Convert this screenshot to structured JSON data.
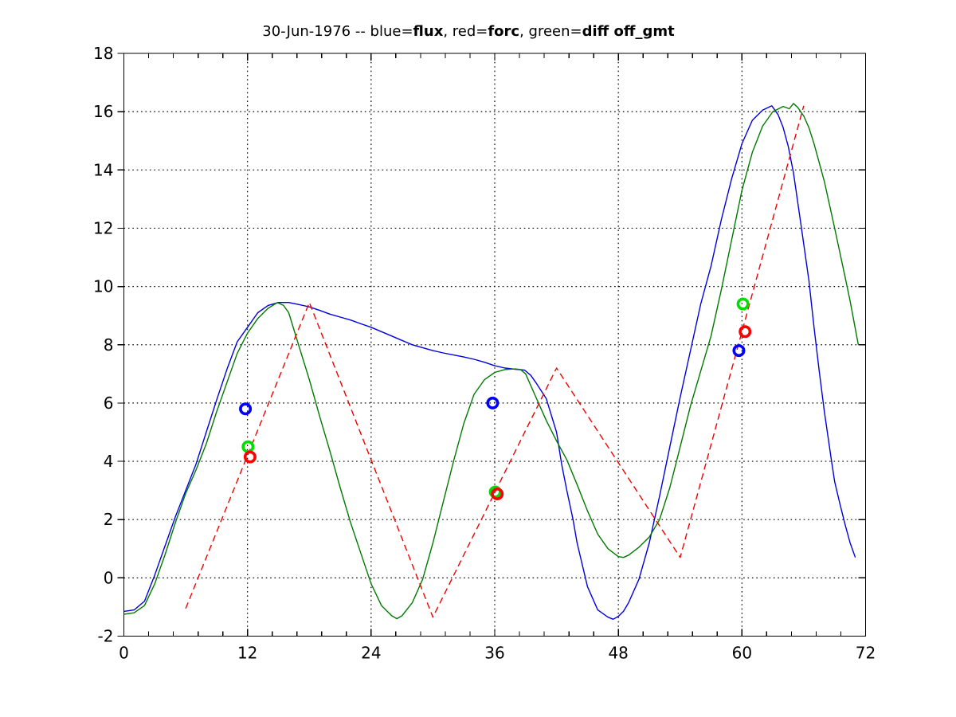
{
  "window": {
    "background": "#ffffff",
    "axis_color": "#000000"
  },
  "title": {
    "full_text": "30-Jun-1976 -- blue=flux, red=forc, green=diff off_gmt",
    "segments": [
      {
        "text": "30-Jun-1976 -- blue=",
        "bold": false
      },
      {
        "text": "flux",
        "bold": true
      },
      {
        "text": ", red=",
        "bold": false
      },
      {
        "text": "forc",
        "bold": true
      },
      {
        "text": ", green=",
        "bold": false
      },
      {
        "text": "diff off_gmt",
        "bold": true
      }
    ]
  },
  "chart_data": {
    "type": "line",
    "title": "30-Jun-1976 -- blue=flux, red=forc, green=diff off_gmt",
    "xlabel": "",
    "ylabel": "",
    "xlim": [
      0,
      72
    ],
    "ylim": [
      -2,
      18
    ],
    "xticks": [
      0,
      12,
      24,
      36,
      48,
      60,
      72
    ],
    "yticks": [
      -2,
      0,
      2,
      4,
      6,
      8,
      10,
      12,
      14,
      16,
      18
    ],
    "x_minor_tick_step": 2.4,
    "grid_x": [
      12,
      24,
      36,
      48,
      60
    ],
    "grid_y": [
      0,
      2,
      4,
      6,
      8,
      10,
      12,
      14,
      16
    ],
    "grid_style": "dotted",
    "legend_position": "none (legend encoded in title)",
    "series": [
      {
        "name": "flux",
        "color": "#0000dd",
        "line_style": "solid",
        "points": [
          [
            0,
            -1.15
          ],
          [
            1,
            -1.1
          ],
          [
            2,
            -0.8
          ],
          [
            3,
            0.1
          ],
          [
            4,
            1.1
          ],
          [
            5,
            2.1
          ],
          [
            6,
            3.0
          ],
          [
            7,
            3.9
          ],
          [
            8,
            5.0
          ],
          [
            9,
            6.1
          ],
          [
            10,
            7.15
          ],
          [
            11,
            8.1
          ],
          [
            12,
            8.6
          ],
          [
            13,
            9.1
          ],
          [
            14,
            9.35
          ],
          [
            15,
            9.45
          ],
          [
            16,
            9.45
          ],
          [
            17,
            9.38
          ],
          [
            18,
            9.3
          ],
          [
            19,
            9.18
          ],
          [
            20,
            9.05
          ],
          [
            21,
            8.95
          ],
          [
            22,
            8.85
          ],
          [
            23,
            8.72
          ],
          [
            24,
            8.6
          ],
          [
            25,
            8.45
          ],
          [
            26,
            8.3
          ],
          [
            27,
            8.15
          ],
          [
            28,
            8.0
          ],
          [
            29,
            7.9
          ],
          [
            30,
            7.8
          ],
          [
            31,
            7.72
          ],
          [
            32,
            7.65
          ],
          [
            33,
            7.58
          ],
          [
            34,
            7.5
          ],
          [
            35,
            7.4
          ],
          [
            36,
            7.28
          ],
          [
            37,
            7.2
          ],
          [
            38,
            7.16
          ],
          [
            38.9,
            7.13
          ],
          [
            39.5,
            6.95
          ],
          [
            40,
            6.7
          ],
          [
            41,
            6.15
          ],
          [
            42,
            5.0
          ],
          [
            42.5,
            3.9
          ],
          [
            43,
            3.0
          ],
          [
            43.6,
            2.0
          ],
          [
            44,
            1.2
          ],
          [
            45,
            -0.3
          ],
          [
            46,
            -1.1
          ],
          [
            47,
            -1.35
          ],
          [
            47.5,
            -1.42
          ],
          [
            48,
            -1.32
          ],
          [
            48.5,
            -1.15
          ],
          [
            49,
            -0.85
          ],
          [
            50,
            -0.05
          ],
          [
            51,
            1.2
          ],
          [
            52,
            2.8
          ],
          [
            53,
            4.5
          ],
          [
            54,
            6.2
          ],
          [
            55,
            7.8
          ],
          [
            56,
            9.4
          ],
          [
            57,
            10.7
          ],
          [
            58,
            12.3
          ],
          [
            59,
            13.7
          ],
          [
            60,
            14.9
          ],
          [
            61,
            15.7
          ],
          [
            62,
            16.05
          ],
          [
            62.9,
            16.2
          ],
          [
            63.5,
            15.9
          ],
          [
            64,
            15.45
          ],
          [
            64.5,
            14.8
          ],
          [
            65,
            13.9
          ],
          [
            65.7,
            12.2
          ],
          [
            66.5,
            10.2
          ],
          [
            67,
            8.6
          ],
          [
            67.5,
            7.1
          ],
          [
            68,
            5.7
          ],
          [
            68.7,
            4.0
          ],
          [
            69,
            3.3
          ],
          [
            69.5,
            2.55
          ],
          [
            70,
            1.85
          ],
          [
            70.5,
            1.2
          ],
          [
            71,
            0.7
          ]
        ]
      },
      {
        "name": "diff",
        "color": "#007a00",
        "line_style": "solid",
        "points": [
          [
            0,
            -1.25
          ],
          [
            1,
            -1.2
          ],
          [
            2,
            -0.95
          ],
          [
            3,
            -0.2
          ],
          [
            4,
            0.8
          ],
          [
            5,
            1.9
          ],
          [
            6,
            2.9
          ],
          [
            7,
            3.7
          ],
          [
            8,
            4.6
          ],
          [
            9,
            5.7
          ],
          [
            10,
            6.7
          ],
          [
            11,
            7.7
          ],
          [
            12,
            8.4
          ],
          [
            13,
            8.9
          ],
          [
            14,
            9.25
          ],
          [
            14.9,
            9.45
          ],
          [
            15.5,
            9.35
          ],
          [
            16,
            9.1
          ],
          [
            17,
            7.95
          ],
          [
            18,
            6.8
          ],
          [
            19,
            5.55
          ],
          [
            20,
            4.35
          ],
          [
            21,
            3.1
          ],
          [
            22,
            1.9
          ],
          [
            23,
            0.85
          ],
          [
            24,
            -0.2
          ],
          [
            25,
            -0.95
          ],
          [
            26,
            -1.3
          ],
          [
            26.5,
            -1.4
          ],
          [
            27,
            -1.3
          ],
          [
            28,
            -0.85
          ],
          [
            29,
            -0.05
          ],
          [
            30,
            1.2
          ],
          [
            31,
            2.6
          ],
          [
            32,
            4.0
          ],
          [
            33,
            5.3
          ],
          [
            34,
            6.3
          ],
          [
            35,
            6.8
          ],
          [
            36,
            7.05
          ],
          [
            37,
            7.15
          ],
          [
            38,
            7.17
          ],
          [
            38.5,
            7.15
          ],
          [
            39,
            7.0
          ],
          [
            40,
            6.2
          ],
          [
            41,
            5.4
          ],
          [
            42,
            4.7
          ],
          [
            43,
            4.05
          ],
          [
            44,
            3.2
          ],
          [
            45,
            2.3
          ],
          [
            46,
            1.5
          ],
          [
            47,
            1.0
          ],
          [
            48,
            0.73
          ],
          [
            48.5,
            0.7
          ],
          [
            49,
            0.78
          ],
          [
            50,
            1.05
          ],
          [
            51,
            1.4
          ],
          [
            52,
            2.0
          ],
          [
            53,
            3.1
          ],
          [
            54,
            4.5
          ],
          [
            55,
            5.9
          ],
          [
            56,
            7.1
          ],
          [
            57,
            8.3
          ],
          [
            58,
            9.9
          ],
          [
            59,
            11.6
          ],
          [
            60,
            13.3
          ],
          [
            61,
            14.6
          ],
          [
            62,
            15.5
          ],
          [
            63,
            16.0
          ],
          [
            64,
            16.18
          ],
          [
            64.6,
            16.1
          ],
          [
            65,
            16.28
          ],
          [
            65.4,
            16.15
          ],
          [
            66,
            15.85
          ],
          [
            66.5,
            15.45
          ],
          [
            67,
            14.9
          ],
          [
            68,
            13.6
          ],
          [
            69,
            12.0
          ],
          [
            70,
            10.35
          ],
          [
            70.5,
            9.5
          ],
          [
            71,
            8.55
          ],
          [
            71.3,
            8.0
          ]
        ]
      },
      {
        "name": "forc",
        "color": "#ee0000",
        "line_style": "dashed",
        "points": [
          [
            6,
            -1.05
          ],
          [
            18,
            9.45
          ],
          [
            30,
            -1.35
          ],
          [
            42,
            7.2
          ],
          [
            54,
            0.7
          ],
          [
            66,
            16.2
          ]
        ]
      }
    ],
    "markers": [
      {
        "name": "flux-obs",
        "color": "#0000ff",
        "shape": "open-circle",
        "points": [
          [
            11.8,
            5.8
          ],
          [
            35.8,
            6.0
          ],
          [
            59.7,
            7.8
          ]
        ]
      },
      {
        "name": "diff-obs",
        "color": "#00dd00",
        "shape": "open-circle",
        "points": [
          [
            12.05,
            4.5
          ],
          [
            36.05,
            2.95
          ],
          [
            60.1,
            9.4
          ]
        ]
      },
      {
        "name": "forc-obs",
        "color": "#ff0000",
        "shape": "open-circle",
        "points": [
          [
            12.25,
            4.15
          ],
          [
            36.25,
            2.88
          ],
          [
            60.3,
            8.45
          ]
        ]
      }
    ]
  }
}
